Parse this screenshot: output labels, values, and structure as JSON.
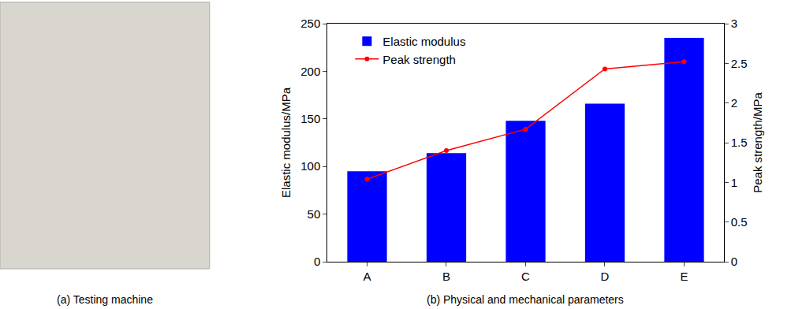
{
  "photo_caption": "(a) Testing machine",
  "chart_data": {
    "type": "bar",
    "xlabel": "(b) Physical and mechanical parameters",
    "ylabel": "Elastic modulus/MPa",
    "y2label": "Peak strength/MPa",
    "categories": [
      "A",
      "B",
      "C",
      "D",
      "E"
    ],
    "series": [
      {
        "name": "Elastic modulus",
        "type": "bar",
        "color": "#0000ff",
        "values": [
          95,
          114,
          148,
          166,
          235
        ]
      },
      {
        "name": "Peak strength",
        "type": "line",
        "color": "#ff0000",
        "marker": "circle",
        "axis": "y2",
        "values": [
          1.04,
          1.4,
          1.67,
          2.43,
          2.52
        ]
      }
    ],
    "ylim": [
      0,
      250
    ],
    "yticks": [
      0,
      50,
      100,
      150,
      200,
      250
    ],
    "y2lim": [
      0,
      3
    ],
    "y2ticks": [
      0,
      0.5,
      1,
      1.5,
      2,
      2.5,
      3
    ],
    "legend": "upper left",
    "grid": false
  }
}
